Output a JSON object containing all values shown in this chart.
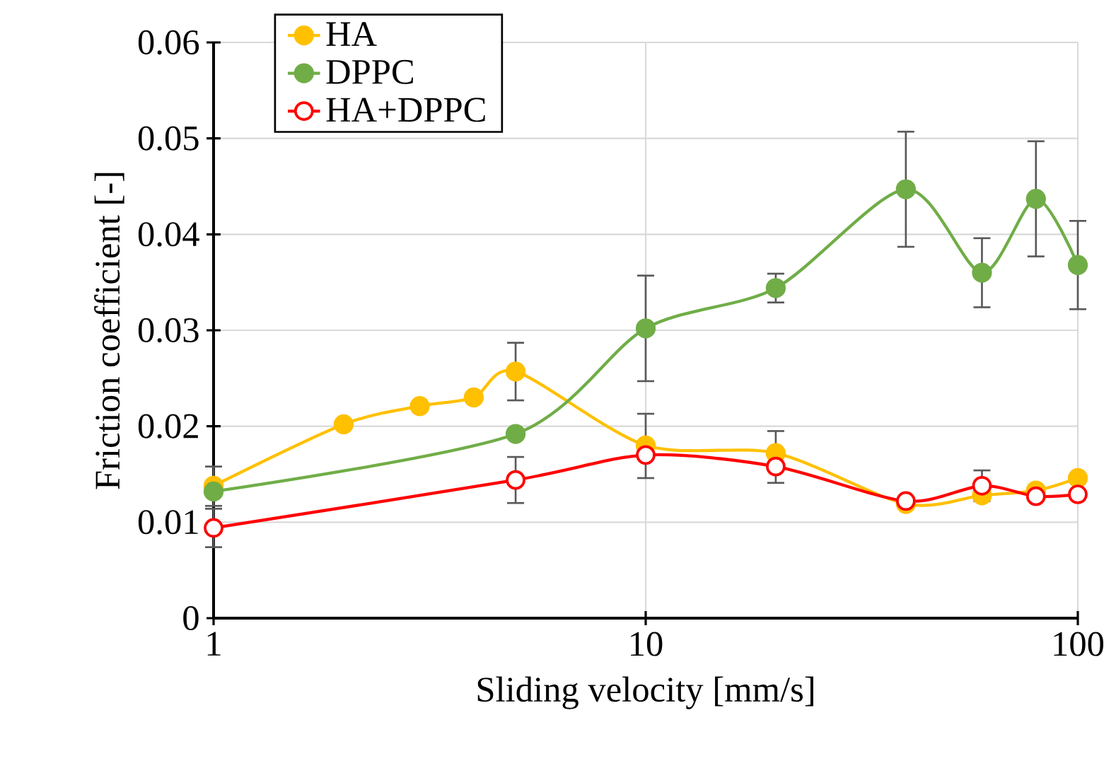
{
  "chart_data": {
    "type": "line",
    "xlabel": "Sliding velocity [mm/s]",
    "ylabel": "Friction coefficient  [-]",
    "log": "x",
    "xlim": [
      1,
      100
    ],
    "xticks": [
      1,
      10,
      100
    ],
    "ylim": [
      0,
      0.06
    ],
    "yticks": [
      0,
      0.01,
      0.02,
      0.03,
      0.04,
      0.05,
      0.06
    ],
    "grid": true,
    "legend": "top left",
    "line_style": "solid",
    "series": [
      {
        "name": "HA",
        "color": "#ffc000",
        "marker": "circle",
        "x": [
          1,
          2,
          3,
          4,
          5,
          10,
          20,
          40,
          60,
          80,
          100
        ],
        "values": [
          0.0138,
          0.0202,
          0.0221,
          0.023,
          0.0257,
          0.018,
          0.0172,
          0.0119,
          0.0128,
          0.0133,
          0.0146
        ],
        "errors": [
          [
            0.0117,
            0.0158
          ],
          null,
          null,
          null,
          0.003,
          [
            0.0146,
            0.0213
          ],
          [
            0.0141,
            0.0195
          ],
          null,
          null,
          null,
          null
        ]
      },
      {
        "name": "DPPC",
        "color": "#70ad47",
        "marker": "circle",
        "x": [
          1,
          5,
          10,
          20,
          40,
          60,
          80,
          100
        ],
        "values": [
          0.0132,
          0.0192,
          0.0302,
          0.0344,
          0.0447,
          0.036,
          0.0437,
          0.0368
        ],
        "errors": [
          null,
          null,
          0.0055,
          0.0015,
          0.006,
          0.0036,
          0.006,
          0.0046
        ]
      },
      {
        "name": "HA+DPPC",
        "color": "#ff0000",
        "marker": "open circle",
        "x": [
          1,
          5,
          10,
          20,
          40,
          60,
          80,
          100
        ],
        "values": [
          0.0094,
          0.0144,
          0.017,
          0.0158,
          0.0122,
          0.0138,
          0.0127,
          0.0129
        ],
        "errors": [
          0.002,
          0.0024,
          null,
          null,
          null,
          0.0016,
          null,
          null
        ]
      }
    ]
  }
}
